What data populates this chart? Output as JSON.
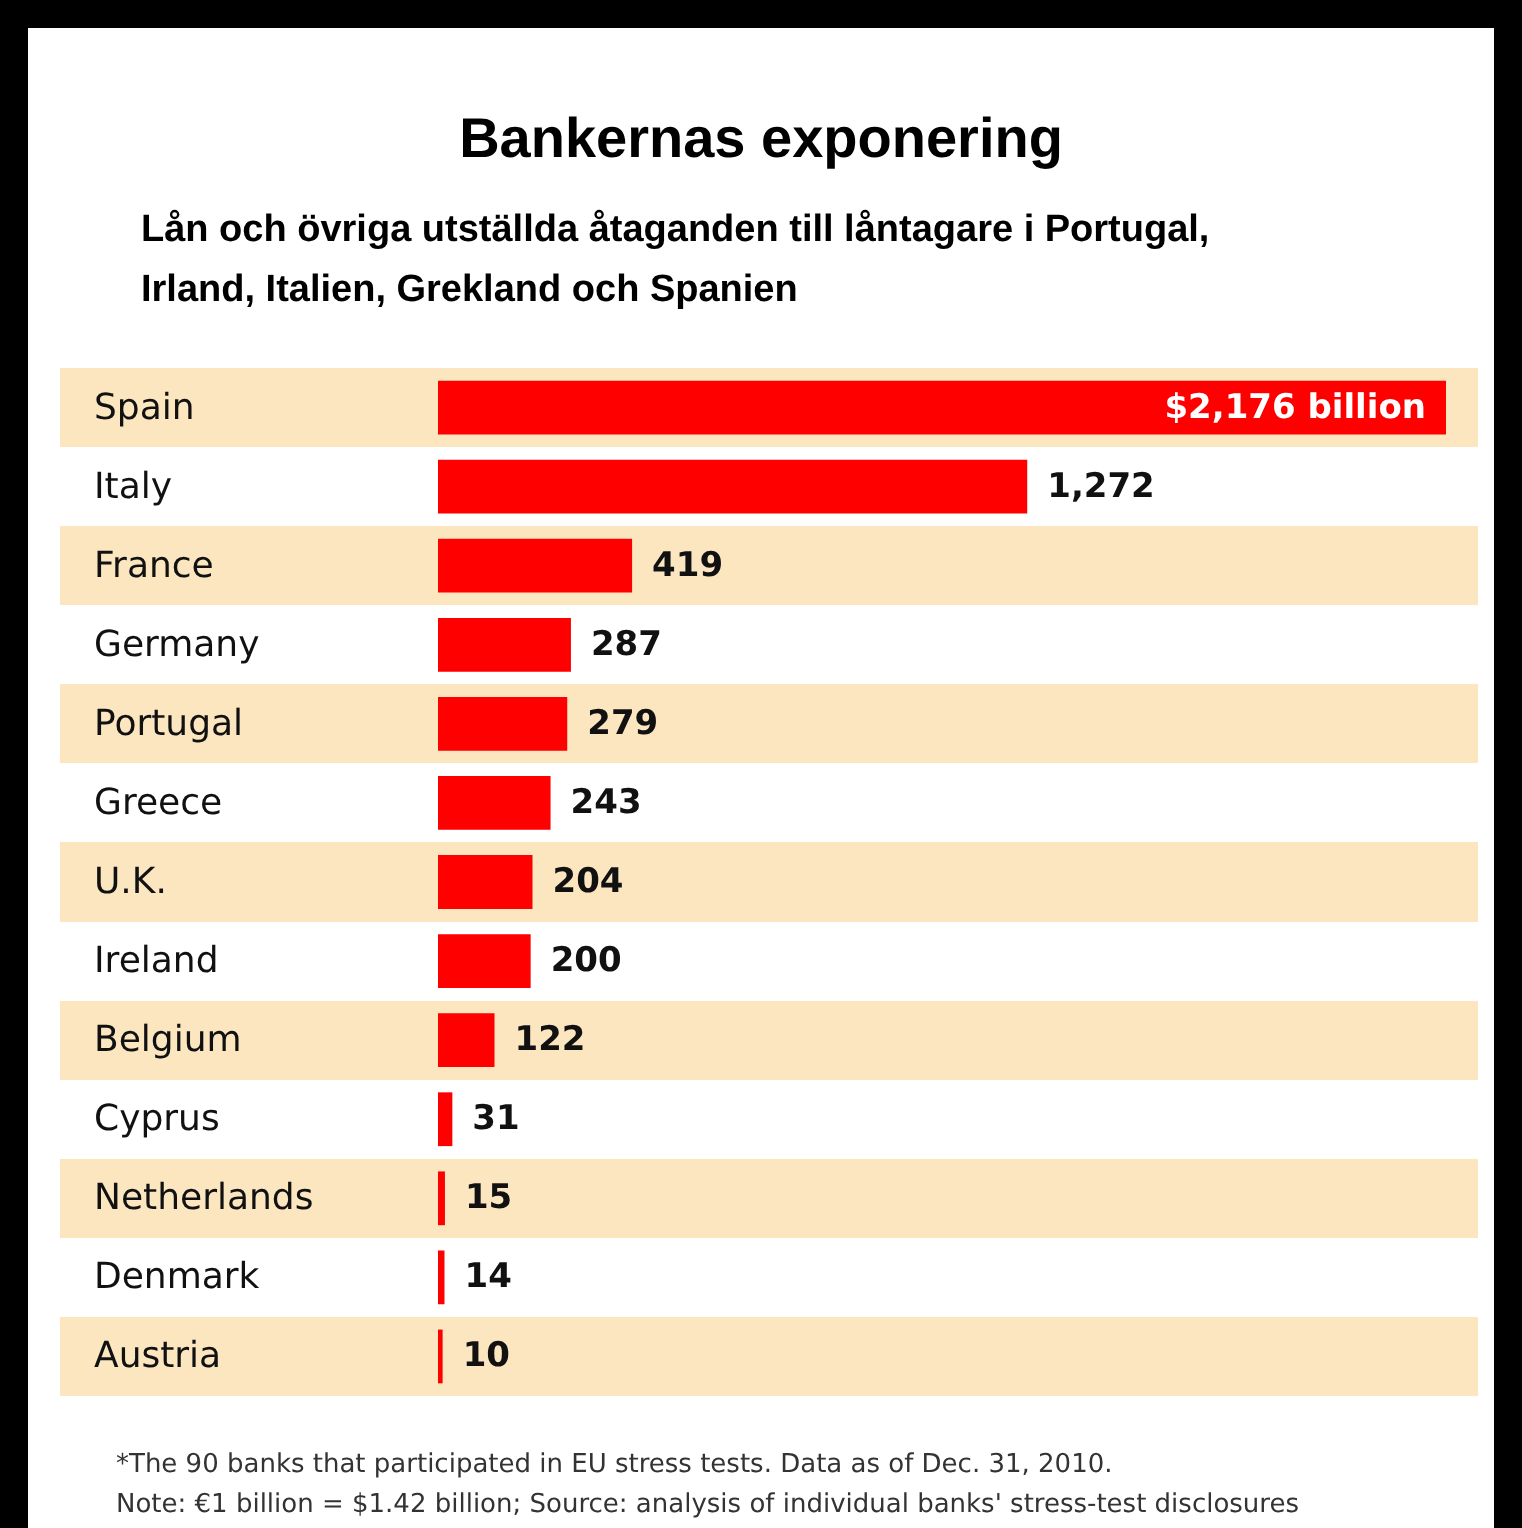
{
  "chart_data": {
    "type": "bar",
    "orientation": "horizontal",
    "title": "Bankernas exponering",
    "subtitle": "Lån och övriga utställda åtaganden till låntagare i Portugal, Irland, Italien, Grekland och Spanien",
    "categories": [
      "Spain",
      "Italy",
      "France",
      "Germany",
      "Portugal",
      "Greece",
      "U.K.",
      "Ireland",
      "Belgium",
      "Cyprus",
      "Netherlands",
      "Denmark",
      "Austria"
    ],
    "values": [
      2176,
      1272,
      419,
      287,
      279,
      243,
      204,
      200,
      122,
      31,
      15,
      14,
      10
    ],
    "value_labels": [
      "$2,176 billion",
      "1,272",
      "419",
      "287",
      "279",
      "243",
      "204",
      "200",
      "122",
      "31",
      "15",
      "14",
      "10"
    ],
    "color": "#ff0000",
    "annotations": [
      "*The 90 banks that participated in EU stress tests. Data as of Dec. 31, 2010.",
      "Note: €1 billion = $1.42 billion; Source: analysis of individual banks' stress-test disclosures"
    ]
  }
}
